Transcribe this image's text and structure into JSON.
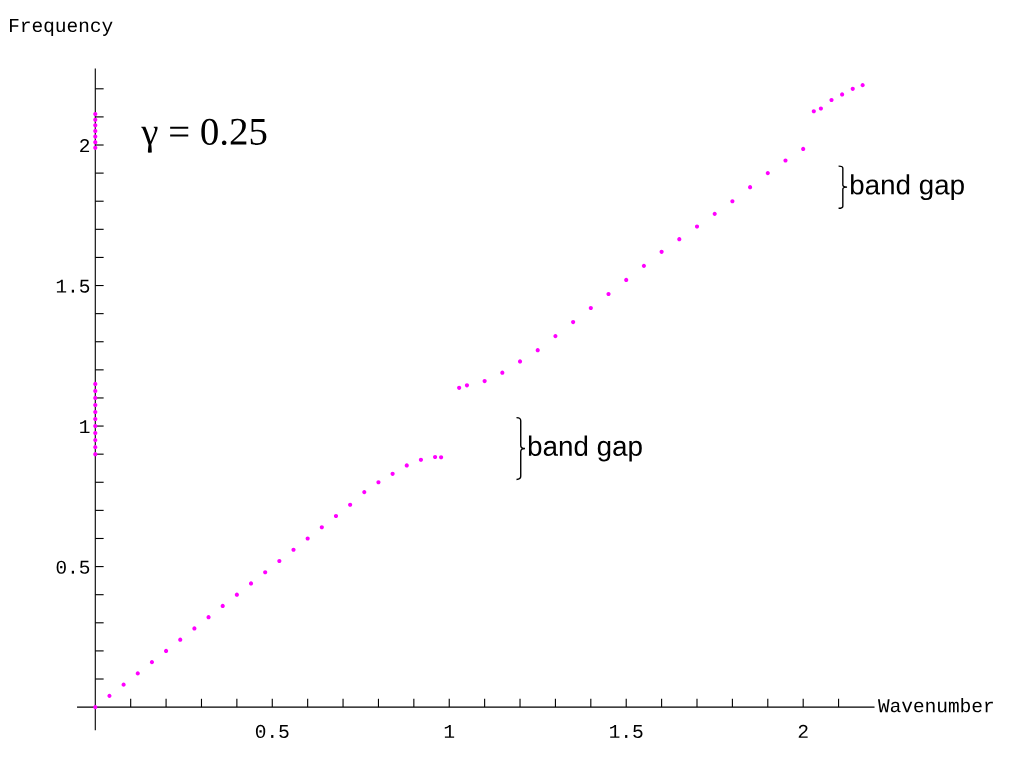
{
  "chart_data": {
    "type": "scatter",
    "xlabel": "Wavenumber",
    "ylabel": "Frequency",
    "annotations": [
      "γ = 0.25",
      "band gap",
      "band gap"
    ],
    "marker": "circle",
    "grid": false,
    "xlim": [
      -0.05,
      2.2
    ],
    "ylim": [
      -0.08,
      2.27
    ],
    "xticks": [
      {
        "value": 0.1,
        "label": null
      },
      {
        "value": 0.2,
        "label": null
      },
      {
        "value": 0.3,
        "label": null
      },
      {
        "value": 0.4,
        "label": null
      },
      0.5,
      {
        "value": 0.6,
        "label": null
      },
      {
        "value": 0.7,
        "label": null
      },
      {
        "value": 0.8,
        "label": null
      },
      {
        "value": 0.9,
        "label": null
      },
      1,
      {
        "value": 1.1,
        "label": null
      },
      {
        "value": 1.2,
        "label": null
      },
      {
        "value": 1.3,
        "label": null
      },
      {
        "value": 1.4,
        "label": null
      },
      1.5,
      {
        "value": 1.6,
        "label": null
      },
      {
        "value": 1.7,
        "label": null
      },
      {
        "value": 1.8,
        "label": null
      },
      {
        "value": 1.9,
        "label": null
      },
      2,
      {
        "value": 2.1,
        "label": null
      }
    ],
    "yticks": [
      {
        "value": 0.1,
        "label": null
      },
      {
        "value": 0.2,
        "label": null
      },
      {
        "value": 0.3,
        "label": null
      },
      {
        "value": 0.4,
        "label": null
      },
      0.5,
      {
        "value": 0.6,
        "label": null
      },
      {
        "value": 0.7,
        "label": null
      },
      {
        "value": 0.8,
        "label": null
      },
      {
        "value": 0.9,
        "label": null
      },
      1,
      {
        "value": 1.1,
        "label": null
      },
      {
        "value": 1.2,
        "label": null
      },
      {
        "value": 1.3,
        "label": null
      },
      {
        "value": 1.4,
        "label": null
      },
      1.5,
      {
        "value": 1.6,
        "label": null
      },
      {
        "value": 1.7,
        "label": null
      },
      {
        "value": 1.8,
        "label": null
      },
      {
        "value": 1.9,
        "label": null
      },
      2,
      {
        "value": 2.1,
        "label": null
      },
      {
        "value": 2.2,
        "label": null
      }
    ],
    "series": [
      {
        "color": "#ff00ff",
        "x": [
          0,
          0.04,
          0.08,
          0.12,
          0.16,
          0.2,
          0.24,
          0.28,
          0.32,
          0.36,
          0.4,
          0.44,
          0.48,
          0.52,
          0.56,
          0.6,
          0.64,
          0.68,
          0.72,
          0.76,
          0.8,
          0.84,
          0.88,
          0.92,
          0.96,
          0.977
        ],
        "values": [
          0,
          0.04,
          0.08,
          0.12,
          0.16,
          0.2,
          0.24,
          0.28,
          0.32,
          0.36,
          0.4,
          0.44,
          0.48,
          0.52,
          0.56,
          0.6,
          0.64,
          0.68,
          0.72,
          0.765,
          0.8,
          0.83,
          0.86,
          0.88,
          0.89,
          0.889
        ]
      },
      {
        "color": "#ff00ff",
        "x": [
          1.028,
          1.05,
          1.1,
          1.15,
          1.2,
          1.25,
          1.3,
          1.35,
          1.4,
          1.45,
          1.5,
          1.55,
          1.6,
          1.65,
          1.7,
          1.75,
          1.8,
          1.85,
          1.9,
          1.95,
          2.0
        ],
        "values": [
          1.136,
          1.145,
          1.16,
          1.19,
          1.23,
          1.27,
          1.32,
          1.37,
          1.42,
          1.47,
          1.52,
          1.57,
          1.62,
          1.665,
          1.71,
          1.755,
          1.8,
          1.85,
          1.9,
          1.945,
          1.986
        ]
      },
      {
        "color": "#ff00ff",
        "x": [
          2.03,
          2.05,
          2.08,
          2.11,
          2.14,
          2.168
        ],
        "values": [
          2.12,
          2.13,
          2.16,
          2.18,
          2.2,
          2.213
        ]
      },
      {
        "color": "#ff00ff",
        "x": [
          0,
          0,
          0,
          0,
          0,
          0,
          0,
          0,
          0,
          0,
          0
        ],
        "values": [
          0.9,
          0.925,
          0.95,
          0.975,
          1.0,
          1.025,
          1.05,
          1.075,
          1.1,
          1.125,
          1.15
        ]
      },
      {
        "color": "#ff00ff",
        "x": [
          0,
          0,
          0,
          0,
          0,
          0,
          0
        ],
        "values": [
          1.99,
          2.01,
          2.03,
          2.05,
          2.07,
          2.09,
          2.11
        ]
      }
    ]
  }
}
